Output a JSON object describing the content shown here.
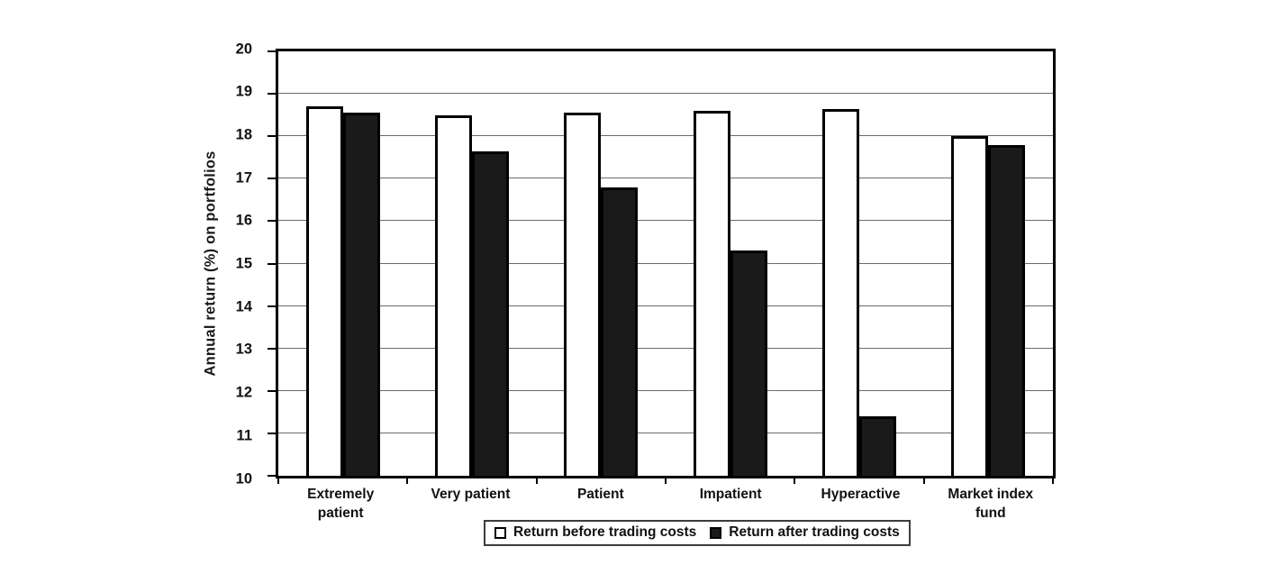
{
  "chart_data": {
    "type": "bar",
    "title": "",
    "categories": [
      "Extremely patient",
      "Very patient",
      "Patient",
      "Impatient",
      "Hyperactive",
      "Market index fund"
    ],
    "series": [
      {
        "name": "Return before trading costs",
        "color": "#ffffff",
        "values": [
          18.7,
          18.5,
          18.55,
          18.6,
          18.65,
          18.0
        ]
      },
      {
        "name": "Return after trading costs",
        "color": "#1a1a1a",
        "values": [
          18.55,
          17.65,
          16.8,
          15.3,
          11.4,
          17.8
        ]
      }
    ],
    "xlabel": "",
    "ylabel": "Annual return (%) on portfolios",
    "ylim": [
      10,
      20
    ],
    "ytick_step": 1,
    "ytick_labels": [
      "10",
      "11",
      "12",
      "13",
      "14",
      "15",
      "16",
      "17",
      "18",
      "19",
      "20"
    ],
    "grid": true,
    "legend_position": "bottom-center",
    "colors": {
      "axis": "#000000",
      "gridline": "#6b6b6b",
      "bar_border": "#000000",
      "text": "#111111",
      "background": "#ffffff"
    }
  }
}
